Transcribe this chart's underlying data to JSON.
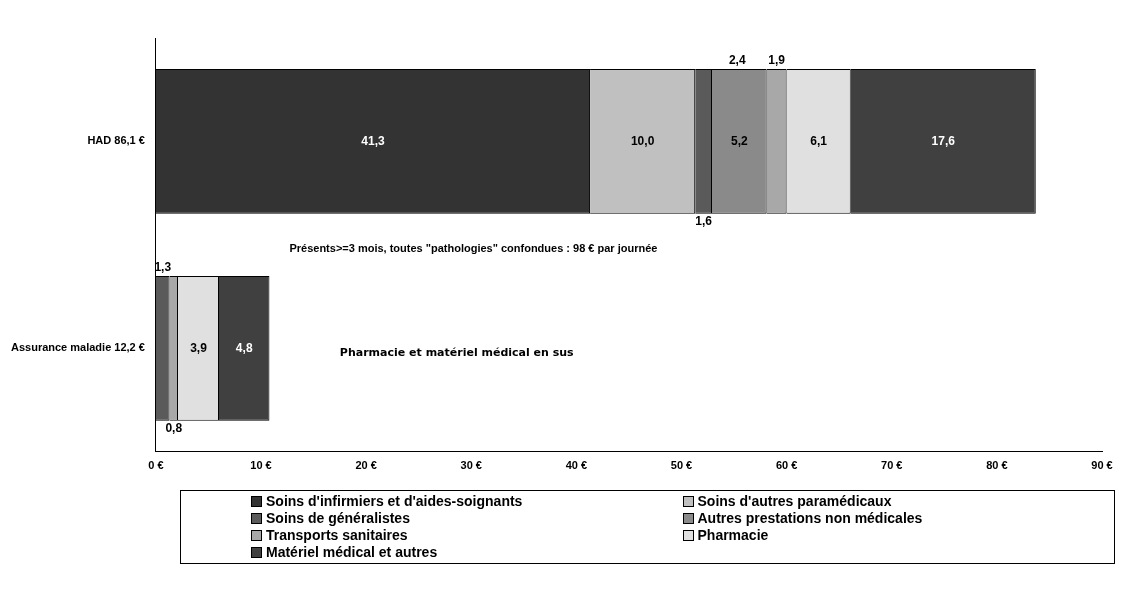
{
  "chart_data": {
    "type": "bar",
    "orientation": "horizontal",
    "stacked": true,
    "categories": [
      "HAD 86,1 €",
      "Assurance maladie 12,2 €"
    ],
    "series": [
      {
        "name": "Soins d'infirmiers et d'aides-soignants",
        "color": "#333333",
        "values": [
          41.3,
          null
        ],
        "value_labels": [
          "41,3",
          null
        ]
      },
      {
        "name": "Soins d'autres paramédicaux",
        "color": "#c0c0c0",
        "values": [
          10.0,
          null
        ],
        "value_labels": [
          "10,0",
          null
        ]
      },
      {
        "name": "Soins de généralistes",
        "color": "#5a5a5a",
        "values": [
          1.6,
          1.3
        ],
        "value_labels": [
          "1,6",
          "1,3"
        ]
      },
      {
        "name": "Autres prestations non médicales",
        "color": "#8a8a8a",
        "values": [
          5.2,
          null
        ],
        "value_labels": [
          "5,2",
          null
        ]
      },
      {
        "name": "Transports sanitaires",
        "color": "#a8a8a8",
        "values": [
          1.9,
          0.8
        ],
        "value_labels": [
          "1,9",
          "0,8"
        ]
      },
      {
        "name": "Pharmacie",
        "color": "#e0e0e0",
        "values": [
          6.1,
          3.9
        ],
        "value_labels": [
          "6,1",
          "3,9"
        ]
      },
      {
        "name": "Matériel médical et autres",
        "color": "#404040",
        "values": [
          17.6,
          4.8
        ],
        "value_labels": [
          "17,6",
          "4,8"
        ]
      }
    ],
    "xlim": [
      0,
      90
    ],
    "xticks": [
      {
        "value": 0,
        "label": "0 €"
      },
      {
        "value": 10,
        "label": "10 €"
      },
      {
        "value": 20,
        "label": "20 €"
      },
      {
        "value": 30,
        "label": "30 €"
      },
      {
        "value": 40,
        "label": "40 €"
      },
      {
        "value": 50,
        "label": "50 €"
      },
      {
        "value": 60,
        "label": "60 €"
      },
      {
        "value": 70,
        "label": "70 €"
      },
      {
        "value": 80,
        "label": "80 €"
      },
      {
        "value": 90,
        "label": "90 €"
      }
    ],
    "annotations": [
      "2,4",
      "Présents>=3 mois, toutes \"pathologies\" confondues : 98 € par journée",
      "Pharmacie et matériel médical en sus"
    ],
    "grid": false,
    "legend": "bottom"
  }
}
